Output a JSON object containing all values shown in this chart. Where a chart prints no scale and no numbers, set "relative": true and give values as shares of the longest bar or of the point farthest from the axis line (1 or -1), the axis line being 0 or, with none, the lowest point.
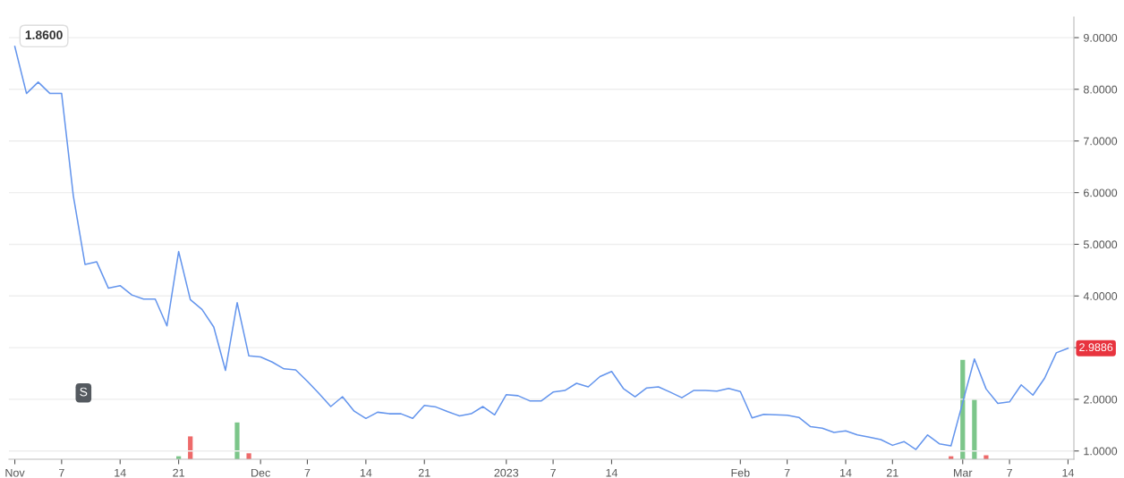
{
  "chart_data": [
    {
      "type": "line",
      "categories": [
        "Nov",
        null,
        null,
        null,
        "7",
        null,
        null,
        null,
        null,
        "14",
        null,
        null,
        null,
        null,
        "21",
        null,
        null,
        null,
        null,
        null,
        null,
        "Dec",
        null,
        null,
        null,
        "7",
        null,
        null,
        null,
        null,
        "14",
        null,
        null,
        null,
        null,
        "21",
        null,
        null,
        null,
        null,
        null,
        null,
        "2023",
        null,
        null,
        null,
        "7",
        null,
        null,
        null,
        null,
        "14",
        null,
        null,
        null,
        null,
        null,
        null,
        null,
        null,
        null,
        null,
        "Feb",
        null,
        null,
        null,
        "7",
        null,
        null,
        null,
        null,
        "14",
        null,
        null,
        null,
        "21",
        null,
        null,
        null,
        null,
        null,
        "Mar",
        null,
        null,
        null,
        "7",
        null,
        null,
        null,
        null,
        "14"
      ],
      "series": [
        {
          "color": "#6495ed",
          "values": [
            8.83,
            7.92,
            8.14,
            7.92,
            7.92,
            5.94,
            4.61,
            4.66,
            4.15,
            4.2,
            4.02,
            3.94,
            3.94,
            3.42,
            4.86,
            3.93,
            3.74,
            3.4,
            2.56,
            3.87,
            2.84,
            2.82,
            2.72,
            2.59,
            2.57,
            2.35,
            2.11,
            1.86,
            2.05,
            1.77,
            1.63,
            1.75,
            1.72,
            1.72,
            1.63,
            1.88,
            1.85,
            1.76,
            1.68,
            1.72,
            1.86,
            1.7,
            2.09,
            2.07,
            1.97,
            1.97,
            2.14,
            2.17,
            2.31,
            2.24,
            2.44,
            2.54,
            2.21,
            2.05,
            2.22,
            2.24,
            2.14,
            2.03,
            2.17,
            2.17,
            2.16,
            2.21,
            2.15,
            1.64,
            1.71,
            1.7,
            1.69,
            1.65,
            1.47,
            1.44,
            1.36,
            1.39,
            1.31,
            1.27,
            1.22,
            1.11,
            1.18,
            1.03,
            1.31,
            1.14,
            1.1,
            1.94,
            2.78,
            2.2,
            1.92,
            1.95,
            2.28,
            2.08,
            2.41,
            2.9,
            2.9886
          ]
        }
      ],
      "ylim": [
        0.84,
        9.4
      ],
      "yticks": [
        {
          "value": 1,
          "label": "1.0000"
        },
        {
          "value": 2,
          "label": "2.0000"
        },
        {
          "value": 3,
          "label": null
        },
        {
          "value": 4,
          "label": "4.0000"
        },
        {
          "value": 5,
          "label": "5.0000"
        },
        {
          "value": 6,
          "label": "6.0000"
        },
        {
          "value": 7,
          "label": "7.0000"
        },
        {
          "value": 8,
          "label": "8.0000"
        },
        {
          "value": 9,
          "label": "9.0000"
        }
      ],
      "grid": "y",
      "annotations": [
        "1.8600",
        "2.9886",
        "S"
      ]
    },
    {
      "type": "bar",
      "relative": true,
      "categories": [
        null,
        null,
        null,
        null,
        null,
        null,
        null,
        null,
        null,
        null,
        null,
        null,
        null,
        null,
        null,
        null,
        null,
        null,
        null,
        null,
        null,
        null,
        null,
        null,
        null,
        null,
        null,
        null,
        null,
        null,
        null,
        null,
        null,
        null,
        null,
        null,
        null,
        null,
        null,
        null,
        null,
        null,
        null,
        null,
        null,
        null,
        null,
        null,
        null,
        null,
        null,
        null,
        null,
        null,
        null,
        null,
        null,
        null,
        null,
        null,
        null,
        null,
        null,
        null,
        null,
        null,
        null,
        null,
        null,
        null,
        null,
        null,
        null,
        null,
        null,
        null,
        null,
        null,
        null,
        null,
        null,
        null,
        null,
        null,
        null,
        null,
        null,
        null,
        null,
        null,
        null
      ],
      "values": [
        null,
        null,
        null,
        null,
        null,
        null,
        null,
        null,
        null,
        null,
        null,
        null,
        null,
        null,
        0.03,
        0.23,
        null,
        null,
        null,
        0.37,
        0.06,
        null,
        null,
        null,
        null,
        null,
        null,
        null,
        null,
        null,
        null,
        null,
        null,
        null,
        null,
        null,
        null,
        null,
        null,
        null,
        null,
        null,
        null,
        null,
        null,
        null,
        null,
        null,
        null,
        null,
        null,
        null,
        null,
        null,
        null,
        null,
        null,
        null,
        null,
        null,
        null,
        null,
        null,
        null,
        null,
        null,
        null,
        null,
        null,
        null,
        null,
        null,
        null,
        null,
        null,
        null,
        null,
        null,
        null,
        null,
        0.03,
        1,
        0.6,
        0.04,
        null,
        null,
        null,
        null,
        null,
        null,
        null
      ],
      "colors": [
        null,
        null,
        null,
        null,
        null,
        null,
        null,
        null,
        null,
        null,
        null,
        null,
        null,
        null,
        "#7cc68a",
        "#ee6a6a",
        null,
        null,
        null,
        "#7cc68a",
        "#ee6a6a",
        null,
        null,
        null,
        null,
        null,
        null,
        null,
        null,
        null,
        null,
        null,
        null,
        null,
        null,
        null,
        null,
        null,
        null,
        null,
        null,
        null,
        null,
        null,
        null,
        null,
        null,
        null,
        null,
        null,
        null,
        null,
        null,
        null,
        null,
        null,
        null,
        null,
        null,
        null,
        null,
        null,
        null,
        null,
        null,
        null,
        null,
        null,
        null,
        null,
        null,
        null,
        null,
        null,
        null,
        null,
        null,
        null,
        null,
        null,
        "#ee6a6a",
        "#7cc68a",
        "#7cc68a",
        "#ee6a6a",
        null,
        null,
        null,
        null,
        null,
        null,
        null
      ]
    }
  ]
}
